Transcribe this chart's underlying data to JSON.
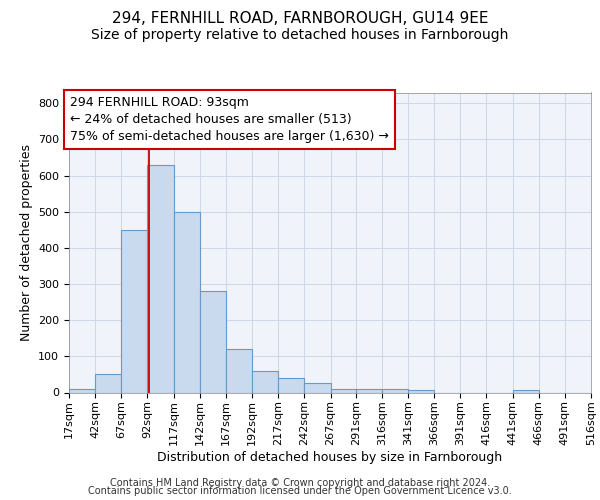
{
  "title_line1": "294, FERNHILL ROAD, FARNBOROUGH, GU14 9EE",
  "title_line2": "Size of property relative to detached houses in Farnborough",
  "xlabel": "Distribution of detached houses by size in Farnborough",
  "ylabel": "Number of detached properties",
  "bar_color": "#c9d9ee",
  "bar_edge_color": "#6699cc",
  "background_color": "#f0f4fa",
  "grid_color": "#d0d8e8",
  "annotation_line_color": "#cc0000",
  "annotation_text_line1": "294 FERNHILL ROAD: 93sqm",
  "annotation_text_line2": "← 24% of detached houses are smaller (513)",
  "annotation_text_line3": "75% of semi-detached houses are larger (1,630) →",
  "property_sqm": 93,
  "bin_edges": [
    17,
    42,
    67,
    92,
    117,
    142,
    167,
    192,
    217,
    242,
    267,
    291,
    316,
    341,
    366,
    391,
    416,
    441,
    466,
    491,
    516
  ],
  "bin_counts": [
    10,
    50,
    450,
    630,
    500,
    280,
    120,
    60,
    40,
    25,
    10,
    10,
    10,
    8,
    0,
    0,
    0,
    8,
    0,
    0
  ],
  "ylim": [
    0,
    830
  ],
  "yticks": [
    0,
    100,
    200,
    300,
    400,
    500,
    600,
    700,
    800
  ],
  "footer_line1": "Contains HM Land Registry data © Crown copyright and database right 2024.",
  "footer_line2": "Contains public sector information licensed under the Open Government Licence v3.0.",
  "title_fontsize": 11,
  "subtitle_fontsize": 10,
  "axis_label_fontsize": 9,
  "tick_fontsize": 8,
  "annotation_fontsize": 9,
  "footer_fontsize": 7
}
